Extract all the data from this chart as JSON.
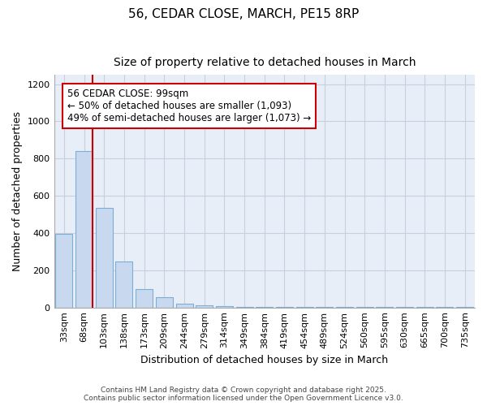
{
  "title1": "56, CEDAR CLOSE, MARCH, PE15 8RP",
  "title2": "Size of property relative to detached houses in March",
  "xlabel": "Distribution of detached houses by size in March",
  "ylabel": "Number of detached properties",
  "categories": [
    "33sqm",
    "68sqm",
    "103sqm",
    "138sqm",
    "173sqm",
    "209sqm",
    "244sqm",
    "279sqm",
    "314sqm",
    "349sqm",
    "384sqm",
    "419sqm",
    "454sqm",
    "489sqm",
    "524sqm",
    "560sqm",
    "595sqm",
    "630sqm",
    "665sqm",
    "700sqm",
    "735sqm"
  ],
  "values": [
    395,
    840,
    535,
    248,
    100,
    55,
    20,
    12,
    8,
    5,
    4,
    3,
    2,
    1,
    1,
    1,
    1,
    1,
    1,
    1,
    1
  ],
  "bar_color": "#c8d8ee",
  "bar_edge_color": "#7bafd4",
  "vline_x_idx": 1,
  "vline_color": "#cc0000",
  "annotation_box_text": "56 CEDAR CLOSE: 99sqm\n← 50% of detached houses are smaller (1,093)\n49% of semi-detached houses are larger (1,073) →",
  "annotation_box_color": "#cc0000",
  "ylim": [
    0,
    1250
  ],
  "yticks": [
    0,
    200,
    400,
    600,
    800,
    1000,
    1200
  ],
  "grid_color": "#c8d0e0",
  "background_color": "#ffffff",
  "plot_bg_color": "#e8eef8",
  "footer1": "Contains HM Land Registry data © Crown copyright and database right 2025.",
  "footer2": "Contains public sector information licensed under the Open Government Licence v3.0.",
  "title_fontsize": 11,
  "subtitle_fontsize": 10,
  "axis_label_fontsize": 9,
  "tick_fontsize": 8,
  "annotation_fontsize": 8.5
}
